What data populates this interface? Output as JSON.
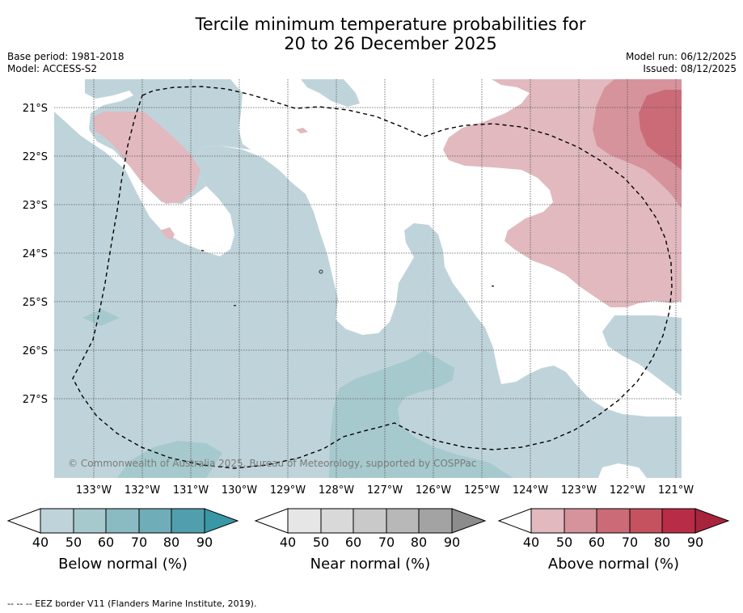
{
  "title_line1": "Tercile minimum temperature probabilities for",
  "title_line2": "20 to 26 December 2025",
  "base_period": "Base period: 1981-2018",
  "model": "Model: ACCESS-S2",
  "model_run": "Model run: 06/12/2025",
  "issued": "Issued: 08/12/2025",
  "copyright": "© Commonwealth of Australia 2025, Bureau of Meteorology, supported by COSPPac",
  "footer": "--  --  -- EEZ border V11 (Flanders Marine Institute, 2019).",
  "colors": {
    "below_40": "#bfd4da",
    "below_50": "#a6c9cd",
    "above_40": "#e1b9bf",
    "above_50": "#d6939c",
    "above_60": "#cc6b78",
    "graticule": "#555555"
  },
  "chart_data": {
    "type": "map",
    "lat_labels": [
      "21°S",
      "22°S",
      "23°S",
      "24°S",
      "25°S",
      "26°S",
      "27°S"
    ],
    "lon_labels": [
      "133°W",
      "132°W",
      "131°W",
      "130°W",
      "129°W",
      "128°W",
      "127°W",
      "126°W",
      "125°W",
      "124°W",
      "123°W",
      "122°W",
      "121°W"
    ],
    "lat_range": [
      -28.6,
      -20.4
    ],
    "lon_range": [
      -133.8,
      -120.9
    ],
    "colorbars": [
      {
        "name": "Below normal (%)",
        "ticks": [
          "40",
          "50",
          "60",
          "70",
          "80",
          "90"
        ],
        "colors": [
          "#bfd4da",
          "#a6c9cd",
          "#8bbbc2",
          "#6fadb8",
          "#519fae",
          "#3a97a6"
        ]
      },
      {
        "name": "Near normal (%)",
        "ticks": [
          "40",
          "50",
          "60",
          "70",
          "80",
          "90"
        ],
        "colors": [
          "#e6e6e6",
          "#d9d9d9",
          "#c9c9c9",
          "#b8b8b8",
          "#a3a3a3",
          "#8c8c8c"
        ]
      },
      {
        "name": "Above normal (%)",
        "ticks": [
          "40",
          "50",
          "60",
          "70",
          "80",
          "90"
        ],
        "colors": [
          "#e1b9bf",
          "#d6939c",
          "#cc6b78",
          "#c4525f",
          "#b92c48",
          "#a8243d"
        ]
      }
    ]
  }
}
